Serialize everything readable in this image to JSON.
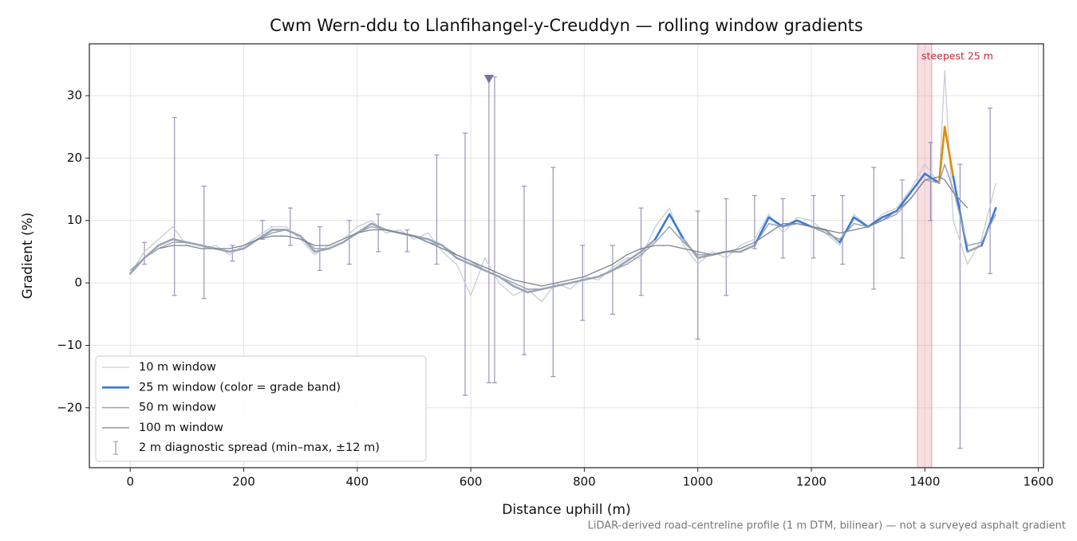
{
  "chart_data": {
    "type": "line",
    "title": "Cwm Wern-ddu to Llanfihangel-y-Creuddyn — rolling window gradients",
    "xlabel": "Distance uphill (m)",
    "ylabel": "Gradient (%)",
    "footnote": "LiDAR-derived road-centreline profile (1 m DTM, bilinear) — not a surveyed asphalt gradient",
    "xlim": [
      -72,
      1609
    ],
    "ylim": [
      -29.6,
      38.3
    ],
    "xticks": [
      0,
      200,
      400,
      600,
      800,
      1000,
      1200,
      1400,
      1600
    ],
    "yticks": [
      {
        "value": -20,
        "label": "−20"
      },
      {
        "value": -10,
        "label": "−10"
      },
      0,
      10,
      20,
      30
    ],
    "grid": true,
    "legend": "lower left",
    "x": [
      0,
      25,
      50,
      75,
      100,
      125,
      150,
      175,
      200,
      225,
      250,
      275,
      300,
      325,
      350,
      375,
      400,
      425,
      450,
      475,
      500,
      525,
      550,
      575,
      600,
      625,
      650,
      675,
      700,
      725,
      750,
      775,
      800,
      825,
      850,
      875,
      900,
      925,
      950,
      975,
      1000,
      1025,
      1050,
      1075,
      1100,
      1125,
      1150,
      1175,
      1200,
      1225,
      1250,
      1275,
      1300,
      1325,
      1350,
      1375,
      1400,
      1425,
      1435,
      1450,
      1475,
      1500,
      1525
    ],
    "series": [
      {
        "name": "10 m window",
        "color": "#c5cdd6",
        "width": 1.3,
        "values": [
          1.5,
          5,
          7,
          9,
          6,
          5.5,
          6,
          4.5,
          6,
          7.5,
          9,
          9,
          7,
          4.5,
          6,
          7,
          9,
          10,
          8,
          8.5,
          7,
          8,
          5,
          3,
          -2,
          4,
          0,
          -2,
          -1,
          -3,
          0,
          -1,
          1,
          0.5,
          2.5,
          4,
          4,
          9,
          12,
          6,
          3,
          5,
          4,
          6,
          7,
          11,
          8,
          10.5,
          10,
          8,
          6,
          11,
          9,
          11,
          12,
          15,
          19,
          16,
          34,
          10,
          3,
          7,
          16
        ]
      },
      {
        "name": "25 m window (color = grade band)",
        "color": "#9aa5b4",
        "width": 2.6,
        "grade_bands": [
          {
            "min": 10,
            "color": "#3a78d8"
          },
          {
            "min": 20,
            "color": "#e08c0a"
          }
        ],
        "values": [
          1.5,
          4,
          6,
          7,
          6.5,
          6,
          5.5,
          5,
          5.5,
          7,
          8.5,
          8.5,
          7.5,
          5,
          5.5,
          6.5,
          8,
          9.5,
          8.5,
          8,
          7.5,
          7,
          6,
          4,
          3,
          2,
          1,
          -0.5,
          -1.5,
          -1,
          -0.5,
          0,
          0.5,
          1,
          2,
          3.5,
          5,
          7,
          11,
          7,
          4,
          4.5,
          5,
          5,
          6,
          10.5,
          9,
          10,
          9,
          8.5,
          6.5,
          10.5,
          9,
          10.5,
          11.5,
          14.5,
          17.5,
          16,
          25,
          17,
          5,
          6,
          12
        ]
      },
      {
        "name": "50 m window",
        "color": "#9aa5b4",
        "width": 1.5,
        "values": [
          2,
          4,
          5.5,
          6.5,
          6.5,
          6,
          5.5,
          5,
          5.5,
          7,
          8,
          8.5,
          7.5,
          5.5,
          5.5,
          6.5,
          8,
          9,
          8.5,
          8,
          7.5,
          6.5,
          6,
          4.5,
          3.5,
          2,
          1,
          0,
          -1,
          -1,
          -0.5,
          0,
          0.5,
          1,
          2,
          3,
          4.5,
          6.5,
          9,
          6.5,
          4.5,
          4.5,
          5,
          5,
          6,
          9.5,
          9,
          9.5,
          9,
          8,
          7,
          9.5,
          9,
          10,
          11,
          13.5,
          16.5,
          16,
          19,
          15,
          6,
          6.5,
          11
        ]
      },
      {
        "name": "100 m window",
        "color": "#7b8494",
        "width": 1.3,
        "values": [
          null,
          null,
          5.5,
          6,
          6,
          5.5,
          5.5,
          5.5,
          6,
          7,
          7.5,
          7.5,
          7,
          6,
          6,
          7,
          8,
          8.5,
          8.5,
          8,
          7.5,
          6.5,
          5.5,
          4.5,
          3.5,
          2.5,
          1.5,
          0.5,
          0,
          -0.5,
          0,
          0.5,
          1,
          2,
          3,
          4.5,
          5.5,
          6,
          6,
          5.5,
          5,
          4.5,
          5,
          5.5,
          6.5,
          8,
          9.5,
          9.5,
          9,
          8.5,
          8,
          8.5,
          9,
          10,
          11.5,
          13.5,
          16.5,
          17,
          16.5,
          14.5,
          12,
          null,
          null
        ]
      }
    ],
    "spread": {
      "name": "2 m diagnostic spread (min–max, ±12 m)",
      "color": "#9b94b8",
      "x": [
        25,
        78,
        130,
        180,
        233,
        282,
        334,
        386,
        437,
        488,
        540,
        590,
        632,
        642,
        694,
        745,
        797,
        850,
        900,
        1000,
        1050,
        1100,
        1150,
        1204,
        1255,
        1310,
        1360,
        1410,
        1462,
        1515
      ],
      "low": [
        3,
        -2,
        -2.5,
        3.5,
        7,
        6,
        2,
        3,
        5,
        5,
        3,
        -18,
        -16,
        -16,
        -11.5,
        -15,
        -6,
        -5,
        -2,
        -9,
        -2,
        5.5,
        4,
        4,
        3,
        -1,
        4,
        10,
        -26.5,
        1.5
      ],
      "high": [
        6.5,
        26.5,
        15.5,
        6,
        10,
        12,
        9,
        10,
        11,
        8.5,
        20.5,
        24,
        33,
        33,
        15.5,
        18.5,
        6,
        6,
        12,
        11.5,
        13.5,
        14,
        13.5,
        14,
        14,
        18.5,
        16.5,
        22.5,
        19,
        28
      ]
    },
    "clip_marker": {
      "x": 632,
      "y": 32.7,
      "color": "#7a6fa8"
    },
    "highlight": {
      "label": "steepest 25 m",
      "x0": 1387,
      "x1": 1412,
      "color": "#e9a0a8",
      "text_color": "#c8283a"
    }
  }
}
